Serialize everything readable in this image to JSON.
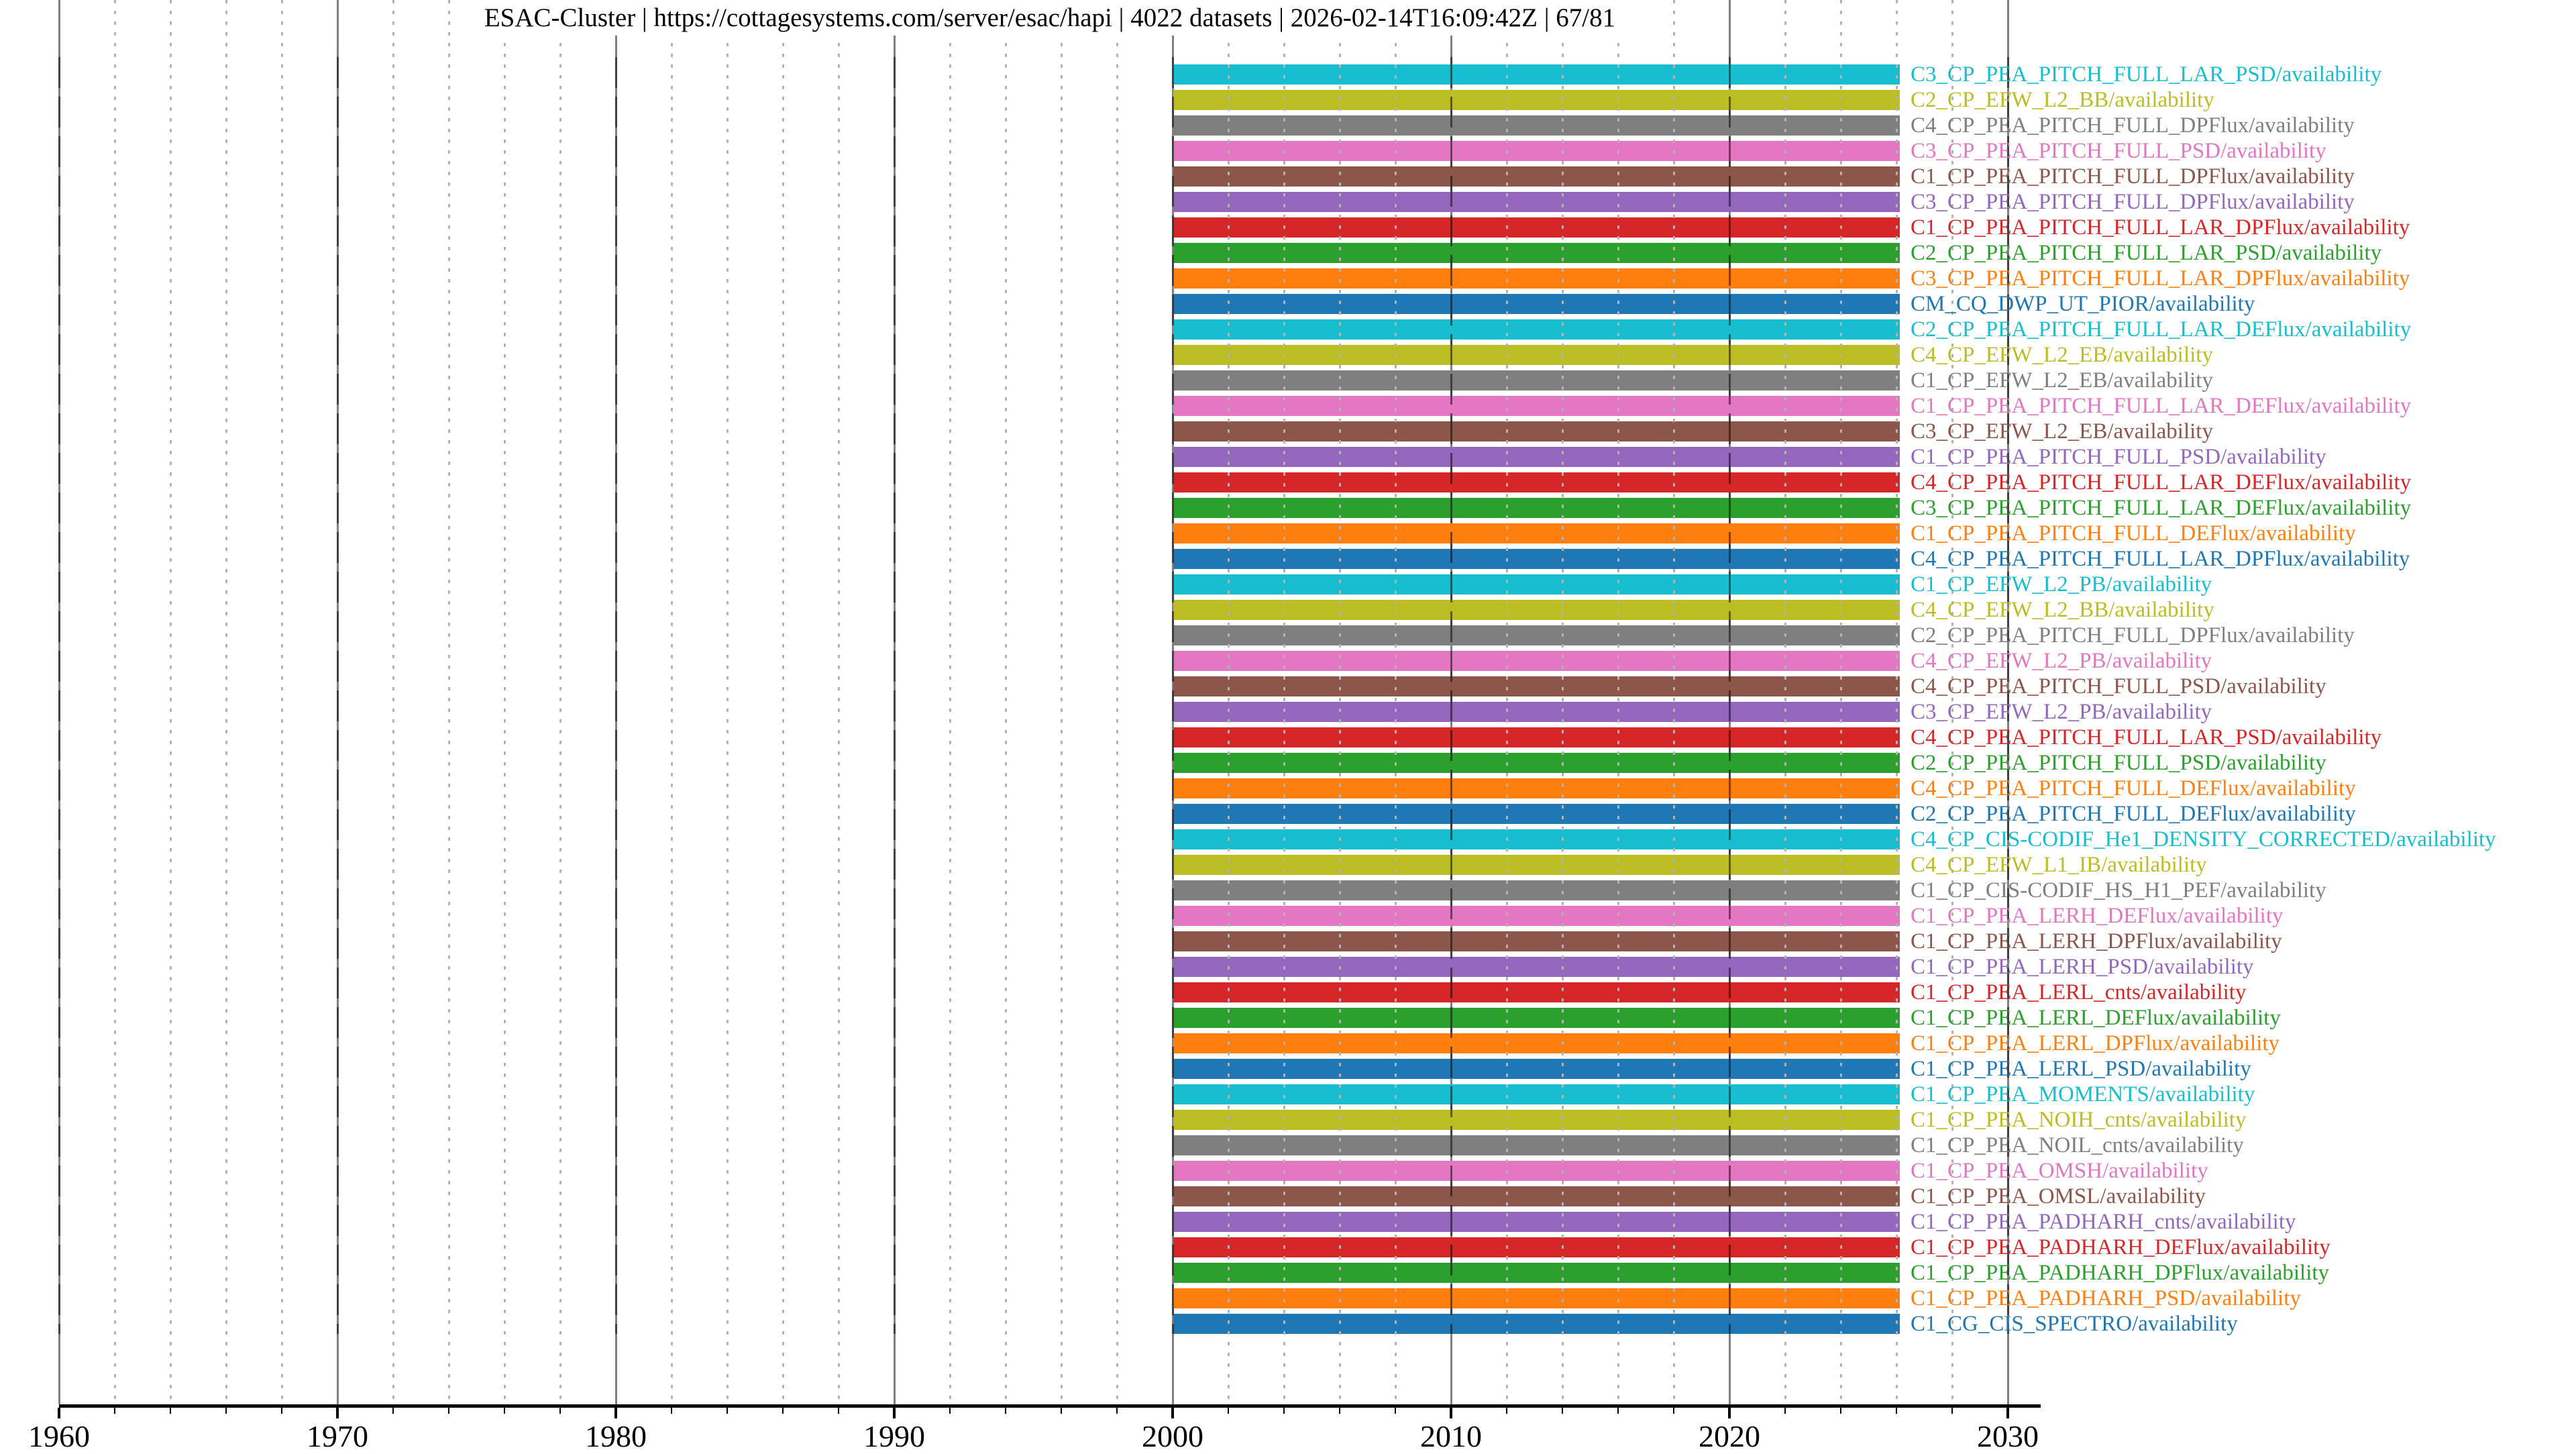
{
  "header": {
    "server": "ESAC-Cluster",
    "url": "https://cottagesystems.com/server/esac/hapi",
    "datasets_count": "4022 datasets",
    "timestamp": "2026-02-14T16:09:42Z",
    "progress": "67/81",
    "text": "ESAC-Cluster | https://cottagesystems.com/server/esac/hapi | 4022 datasets | 2026-02-14T16:09:42Z | 67/81"
  },
  "colors": {
    "background": "#ffffff",
    "axis": "#000000",
    "decade_grid": "#808080",
    "minor_grid": "#b3b3b3",
    "dash_overlay": "rgba(0,0,0,0.5)"
  },
  "chart_data": {
    "type": "bar",
    "subtype": "horizontal-availability-timeline",
    "title": "ESAC-Cluster | https://cottagesystems.com/server/esac/hapi | 4022 datasets | 2026-02-14T16:09:42Z | 67/81",
    "xlabel": "",
    "ylabel": "",
    "xlim": [
      1960,
      2031.2
    ],
    "x_ticks_major": [
      1960,
      1970,
      1980,
      1990,
      2000,
      2010,
      2020,
      2030
    ],
    "x_minor_tick_step_years": 2,
    "grid": true,
    "legend_position": "right-of-bars-inline-labels",
    "bar_start_year": 2000.03,
    "bar_end_year": 2026.12,
    "datasets": [
      {
        "label": "C3_CP_PEA_PITCH_FULL_LAR_PSD/availability",
        "color": "#17becf"
      },
      {
        "label": "C2_CP_EFW_L2_BB/availability",
        "color": "#bcbd22"
      },
      {
        "label": "C4_CP_PEA_PITCH_FULL_DPFlux/availability",
        "color": "#7f7f7f"
      },
      {
        "label": "C3_CP_PEA_PITCH_FULL_PSD/availability",
        "color": "#e377c2"
      },
      {
        "label": "C1_CP_PEA_PITCH_FULL_DPFlux/availability",
        "color": "#8c564b"
      },
      {
        "label": "C3_CP_PEA_PITCH_FULL_DPFlux/availability",
        "color": "#9467bd"
      },
      {
        "label": "C1_CP_PEA_PITCH_FULL_LAR_DPFlux/availability",
        "color": "#d62728"
      },
      {
        "label": "C2_CP_PEA_PITCH_FULL_LAR_PSD/availability",
        "color": "#2ca02c"
      },
      {
        "label": "C3_CP_PEA_PITCH_FULL_LAR_DPFlux/availability",
        "color": "#ff7f0e"
      },
      {
        "label": "CM_CQ_DWP_UT_PIOR/availability",
        "color": "#1f77b4"
      },
      {
        "label": "C2_CP_PEA_PITCH_FULL_LAR_DEFlux/availability",
        "color": "#17becf"
      },
      {
        "label": "C4_CP_EFW_L2_EB/availability",
        "color": "#bcbd22"
      },
      {
        "label": "C1_CP_EFW_L2_EB/availability",
        "color": "#7f7f7f"
      },
      {
        "label": "C1_CP_PEA_PITCH_FULL_LAR_DEFlux/availability",
        "color": "#e377c2"
      },
      {
        "label": "C3_CP_EFW_L2_EB/availability",
        "color": "#8c564b"
      },
      {
        "label": "C1_CP_PEA_PITCH_FULL_PSD/availability",
        "color": "#9467bd"
      },
      {
        "label": "C4_CP_PEA_PITCH_FULL_LAR_DEFlux/availability",
        "color": "#d62728"
      },
      {
        "label": "C3_CP_PEA_PITCH_FULL_LAR_DEFlux/availability",
        "color": "#2ca02c"
      },
      {
        "label": "C1_CP_PEA_PITCH_FULL_DEFlux/availability",
        "color": "#ff7f0e"
      },
      {
        "label": "C4_CP_PEA_PITCH_FULL_LAR_DPFlux/availability",
        "color": "#1f77b4"
      },
      {
        "label": "C1_CP_EFW_L2_PB/availability",
        "color": "#17becf"
      },
      {
        "label": "C4_CP_EFW_L2_BB/availability",
        "color": "#bcbd22"
      },
      {
        "label": "C2_CP_PEA_PITCH_FULL_DPFlux/availability",
        "color": "#7f7f7f"
      },
      {
        "label": "C4_CP_EFW_L2_PB/availability",
        "color": "#e377c2"
      },
      {
        "label": "C4_CP_PEA_PITCH_FULL_PSD/availability",
        "color": "#8c564b"
      },
      {
        "label": "C3_CP_EFW_L2_PB/availability",
        "color": "#9467bd"
      },
      {
        "label": "C4_CP_PEA_PITCH_FULL_LAR_PSD/availability",
        "color": "#d62728"
      },
      {
        "label": "C2_CP_PEA_PITCH_FULL_PSD/availability",
        "color": "#2ca02c"
      },
      {
        "label": "C4_CP_PEA_PITCH_FULL_DEFlux/availability",
        "color": "#ff7f0e"
      },
      {
        "label": "C2_CP_PEA_PITCH_FULL_DEFlux/availability",
        "color": "#1f77b4"
      },
      {
        "label": "C4_CP_CIS-CODIF_He1_DENSITY_CORRECTED/availability",
        "color": "#17becf"
      },
      {
        "label": "C4_CP_EFW_L1_IB/availability",
        "color": "#bcbd22"
      },
      {
        "label": "C1_CP_CIS-CODIF_HS_H1_PEF/availability",
        "color": "#7f7f7f"
      },
      {
        "label": "C1_CP_PEA_LERH_DEFlux/availability",
        "color": "#e377c2"
      },
      {
        "label": "C1_CP_PEA_LERH_DPFlux/availability",
        "color": "#8c564b"
      },
      {
        "label": "C1_CP_PEA_LERH_PSD/availability",
        "color": "#9467bd"
      },
      {
        "label": "C1_CP_PEA_LERL_cnts/availability",
        "color": "#d62728"
      },
      {
        "label": "C1_CP_PEA_LERL_DEFlux/availability",
        "color": "#2ca02c"
      },
      {
        "label": "C1_CP_PEA_LERL_DPFlux/availability",
        "color": "#ff7f0e"
      },
      {
        "label": "C1_CP_PEA_LERL_PSD/availability",
        "color": "#1f77b4"
      },
      {
        "label": "C1_CP_PEA_MOMENTS/availability",
        "color": "#17becf"
      },
      {
        "label": "C1_CP_PEA_NOIH_cnts/availability",
        "color": "#bcbd22"
      },
      {
        "label": "C1_CP_PEA_NOIL_cnts/availability",
        "color": "#7f7f7f"
      },
      {
        "label": "C1_CP_PEA_OMSH/availability",
        "color": "#e377c2"
      },
      {
        "label": "C1_CP_PEA_OMSL/availability",
        "color": "#8c564b"
      },
      {
        "label": "C1_CP_PEA_PADHARH_cnts/availability",
        "color": "#9467bd"
      },
      {
        "label": "C1_CP_PEA_PADHARH_DEFlux/availability",
        "color": "#d62728"
      },
      {
        "label": "C1_CP_PEA_PADHARH_DPFlux/availability",
        "color": "#2ca02c"
      },
      {
        "label": "C1_CP_PEA_PADHARH_PSD/availability",
        "color": "#ff7f0e"
      },
      {
        "label": "C1_CG_CIS_SPECTRO/availability",
        "color": "#1f77b4"
      }
    ]
  }
}
